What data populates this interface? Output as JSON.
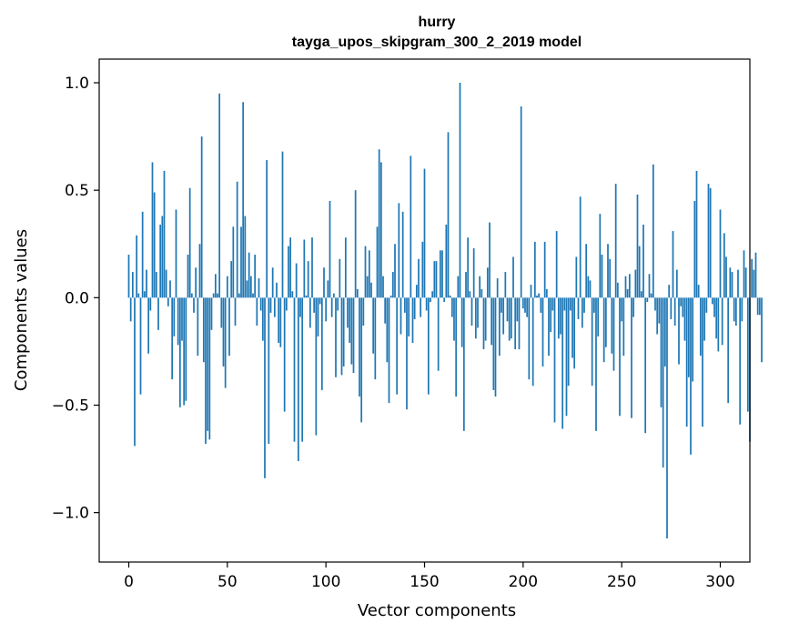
{
  "chart_data": {
    "type": "bar",
    "title": "hurry",
    "subtitle": "tayga_upos_skipgram_300_2_2019 model",
    "xlabel": "Vector components",
    "ylabel": "Components values",
    "xlim": [
      -15,
      315
    ],
    "ylim": [
      -1.23,
      1.11
    ],
    "xticks": [
      0,
      50,
      100,
      150,
      200,
      250,
      300
    ],
    "xtick_labels": [
      "0",
      "50",
      "100",
      "150",
      "200",
      "250",
      "300"
    ],
    "yticks": [
      1.0,
      0.5,
      0.0,
      -0.5,
      -1.0
    ],
    "ytick_labels": [
      "1.0",
      "0.5",
      "0.0",
      "−0.5",
      "−1.0"
    ],
    "bar_color": "#1f77b4",
    "grid": false,
    "values": [
      0.2,
      -0.11,
      0.12,
      -0.69,
      0.29,
      0.02,
      -0.45,
      0.4,
      0.03,
      0.13,
      -0.26,
      -0.06,
      0.63,
      0.49,
      0.12,
      -0.15,
      0.34,
      0.38,
      0.59,
      0.13,
      -0.04,
      0.08,
      -0.38,
      -0.18,
      0.41,
      -0.22,
      -0.51,
      -0.2,
      -0.5,
      -0.48,
      0.2,
      0.51,
      0.02,
      -0.07,
      0.14,
      -0.27,
      0.25,
      0.75,
      -0.3,
      -0.68,
      -0.62,
      -0.66,
      -0.15,
      0.02,
      0.11,
      0.02,
      0.95,
      -0.14,
      -0.32,
      -0.42,
      0.1,
      -0.27,
      0.17,
      0.33,
      -0.13,
      0.54,
      0.02,
      0.33,
      0.91,
      0.38,
      0.08,
      0.21,
      0.1,
      0.02,
      0.2,
      -0.13,
      0.09,
      -0.06,
      -0.2,
      -0.84,
      0.64,
      -0.68,
      -0.07,
      0.14,
      -0.09,
      0.07,
      -0.21,
      -0.23,
      0.68,
      -0.53,
      -0.06,
      0.24,
      0.28,
      0.03,
      -0.67,
      0.16,
      -0.76,
      -0.09,
      -0.67,
      0.27,
      0.01,
      0.17,
      -0.14,
      0.28,
      -0.07,
      -0.64,
      -0.18,
      -0.03,
      -0.43,
      0.14,
      -0.11,
      0.08,
      0.45,
      -0.09,
      0.02,
      -0.37,
      -0.06,
      0.18,
      -0.36,
      -0.32,
      0.28,
      -0.14,
      -0.21,
      -0.31,
      -0.35,
      0.5,
      0.04,
      -0.46,
      -0.58,
      -0.13,
      0.24,
      0.1,
      0.22,
      0.07,
      -0.26,
      -0.38,
      0.33,
      0.69,
      0.63,
      0.1,
      -0.12,
      -0.3,
      -0.49,
      0.01,
      0.12,
      0.25,
      -0.45,
      0.44,
      -0.17,
      0.4,
      -0.07,
      -0.52,
      -0.18,
      0.66,
      -0.21,
      -0.1,
      0.06,
      0.18,
      -0.09,
      0.26,
      0.6,
      -0.06,
      -0.45,
      -0.02,
      0.03,
      0.17,
      0.17,
      -0.34,
      0.22,
      0.22,
      -0.02,
      0.34,
      0.77,
      0.01,
      -0.09,
      -0.2,
      -0.46,
      0.1,
      1.0,
      -0.23,
      -0.62,
      0.12,
      0.28,
      0.03,
      -0.13,
      0.23,
      -0.19,
      -0.14,
      0.1,
      0.04,
      -0.24,
      -0.2,
      0.14,
      0.35,
      -0.22,
      -0.43,
      -0.46,
      0.09,
      -0.27,
      -0.07,
      -0.17,
      0.12,
      -0.11,
      -0.2,
      -0.19,
      0.19,
      -0.24,
      -0.11,
      -0.24,
      0.89,
      -0.05,
      -0.07,
      -0.09,
      -0.38,
      0.06,
      -0.41,
      0.26,
      0.01,
      0.02,
      -0.07,
      -0.32,
      0.26,
      0.04,
      -0.27,
      -0.16,
      -0.06,
      -0.58,
      0.31,
      -0.19,
      -0.17,
      -0.61,
      -0.06,
      -0.55,
      -0.41,
      -0.06,
      -0.28,
      -0.33,
      0.19,
      -0.1,
      0.47,
      -0.14,
      -0.07,
      0.25,
      0.1,
      0.08,
      -0.41,
      -0.07,
      -0.62,
      -0.18,
      0.39,
      0.2,
      -0.3,
      -0.23,
      0.25,
      0.18,
      -0.26,
      -0.34,
      0.53,
      0.07,
      -0.55,
      -0.11,
      -0.27,
      0.1,
      0.04,
      0.11,
      -0.56,
      -0.09,
      0.13,
      0.48,
      0.24,
      0.03,
      0.34,
      -0.63,
      -0.02,
      0.11,
      0.02,
      0.62,
      -0.06,
      -0.17,
      -0.12,
      -0.51,
      -0.79,
      -0.32,
      -1.12,
      0.06,
      -0.1,
      0.31,
      -0.13,
      0.13,
      -0.31,
      -0.04,
      -0.09,
      -0.2,
      -0.6,
      -0.37,
      -0.73,
      -0.39,
      0.45,
      0.59,
      0.06,
      -0.27,
      -0.6,
      -0.2,
      -0.07,
      0.53,
      0.51,
      -0.03,
      -0.09,
      -0.19,
      -0.25,
      0.41,
      -0.22,
      0.3,
      0.19,
      -0.49,
      0.14,
      0.12,
      -0.11,
      -0.13,
      0.13,
      -0.59,
      -0.11,
      0.22,
      0.14,
      -0.53,
      -0.67,
      0.18,
      0.13,
      0.21,
      -0.08,
      -0.08,
      -0.3
    ]
  }
}
